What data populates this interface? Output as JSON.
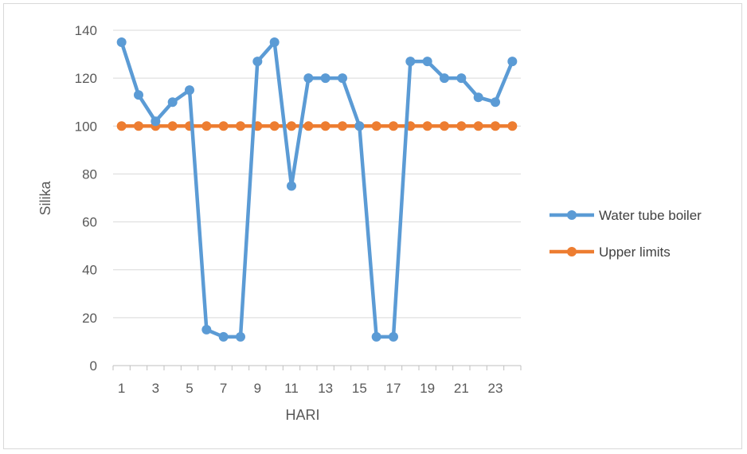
{
  "chart_data": {
    "type": "line",
    "title": "",
    "xlabel": "HARI",
    "ylabel": "Silika",
    "ylim": [
      0,
      140
    ],
    "y_ticks": [
      0,
      20,
      40,
      60,
      80,
      100,
      120,
      140
    ],
    "x": [
      1,
      2,
      3,
      4,
      5,
      6,
      7,
      8,
      9,
      10,
      11,
      12,
      13,
      14,
      15,
      16,
      17,
      18,
      19,
      20,
      21,
      22,
      23,
      24
    ],
    "x_tick_labels": [
      "1",
      "3",
      "5",
      "7",
      "9",
      "11",
      "13",
      "15",
      "17",
      "19",
      "21",
      "23"
    ],
    "x_tick_values": [
      1,
      3,
      5,
      7,
      9,
      11,
      13,
      15,
      17,
      19,
      21,
      23
    ],
    "grid": true,
    "legend_position": "right",
    "series": [
      {
        "name": "Water tube boiler",
        "color": "#5b9bd5",
        "values": [
          135,
          113,
          102,
          110,
          115,
          15,
          12,
          12,
          127,
          135,
          75,
          120,
          120,
          120,
          100,
          12,
          12,
          127,
          127,
          120,
          120,
          112,
          110,
          127
        ]
      },
      {
        "name": "Upper limits",
        "color": "#ed7d31",
        "values": [
          100,
          100,
          100,
          100,
          100,
          100,
          100,
          100,
          100,
          100,
          100,
          100,
          100,
          100,
          100,
          100,
          100,
          100,
          100,
          100,
          100,
          100,
          100,
          100
        ]
      }
    ]
  }
}
